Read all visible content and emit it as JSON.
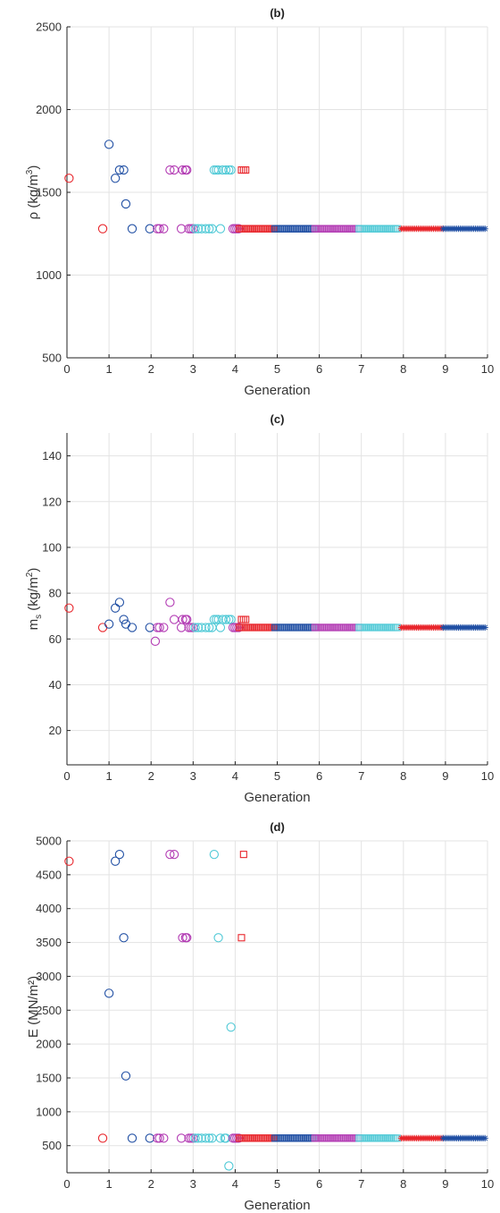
{
  "colors": {
    "red": "#e8252b",
    "blue": "#1f4ea3",
    "magenta": "#b23ab3",
    "cyan": "#4fc9d6",
    "grid": "#e3e3e3",
    "axis": "#222222"
  },
  "chart_data": [
    {
      "id": "b",
      "type": "scatter",
      "title": "(b)",
      "xlabel": "Generation",
      "ylabel_parts": [
        "ρ (kg/m",
        "3",
        ")"
      ],
      "xlim": [
        0,
        10
      ],
      "ylim": [
        500,
        2500
      ],
      "xticks": [
        0,
        1,
        2,
        3,
        4,
        5,
        6,
        7,
        8,
        9,
        10
      ],
      "yticks": [
        500,
        1000,
        1500,
        2000,
        2500
      ],
      "grid": true,
      "series": [
        {
          "color": "red",
          "marker": "circle",
          "x": [
            0.05,
            0.85
          ],
          "y": [
            1585,
            1280
          ]
        },
        {
          "color": "blue",
          "marker": "circle",
          "x": [
            1.0,
            1.15,
            1.25,
            1.35,
            1.4,
            1.55,
            1.97
          ],
          "y": [
            1790,
            1585,
            1635,
            1635,
            1430,
            1280,
            1280
          ]
        },
        {
          "color": "magenta",
          "marker": "circle",
          "x": [
            2.15,
            2.2,
            2.3,
            2.45,
            2.55,
            2.72,
            2.75,
            2.82,
            2.85,
            2.9,
            2.95,
            3.0
          ],
          "y": [
            1280,
            1280,
            1280,
            1635,
            1635,
            1280,
            1635,
            1635,
            1635,
            1280,
            1280,
            1280
          ]
        },
        {
          "color": "cyan",
          "marker": "circle",
          "x": [
            3.05,
            3.12,
            3.2,
            3.3,
            3.38,
            3.45,
            3.5,
            3.55,
            3.6,
            3.65,
            3.7,
            3.78,
            3.85,
            3.9
          ],
          "y": [
            1280,
            1280,
            1280,
            1280,
            1280,
            1280,
            1635,
            1635,
            1635,
            1280,
            1635,
            1635,
            1635,
            1635
          ]
        },
        {
          "color": "red",
          "marker": "square",
          "x": [
            4.15,
            4.2,
            4.25
          ],
          "y": [
            1635,
            1635,
            1635
          ]
        }
      ],
      "dense": [
        {
          "color": "magenta",
          "marker": "circle",
          "from": 3.95,
          "to": 4.1,
          "y": 1280
        },
        {
          "color": "red",
          "marker": "square",
          "from": 4.1,
          "to": 4.95,
          "y": 1280
        },
        {
          "color": "blue",
          "marker": "square",
          "from": 4.95,
          "to": 5.9,
          "y": 1280
        },
        {
          "color": "magenta",
          "marker": "square",
          "from": 5.9,
          "to": 6.95,
          "y": 1280
        },
        {
          "color": "cyan",
          "marker": "square",
          "from": 6.95,
          "to": 7.85,
          "y": 1280
        },
        {
          "color": "red",
          "marker": "star",
          "from": 7.95,
          "to": 8.95,
          "y": 1280
        },
        {
          "color": "blue",
          "marker": "star",
          "from": 8.95,
          "to": 9.98,
          "y": 1280
        }
      ]
    },
    {
      "id": "c",
      "type": "scatter",
      "title": "(c)",
      "xlabel": "Generation",
      "ylabel_parts": [
        "m",
        "s",
        " (kg/m",
        "2",
        ")"
      ],
      "xlim": [
        0,
        10
      ],
      "ylim": [
        5,
        150
      ],
      "xticks": [
        0,
        1,
        2,
        3,
        4,
        5,
        6,
        7,
        8,
        9,
        10
      ],
      "yticks": [
        20,
        40,
        60,
        80,
        100,
        120,
        140
      ],
      "grid": true,
      "series": [
        {
          "color": "red",
          "marker": "circle",
          "x": [
            0.05,
            0.85
          ],
          "y": [
            73.5,
            65
          ]
        },
        {
          "color": "blue",
          "marker": "circle",
          "x": [
            1.0,
            1.15,
            1.25,
            1.35,
            1.4,
            1.55,
            1.97
          ],
          "y": [
            66.5,
            73.5,
            76,
            68.5,
            66.5,
            65,
            65
          ]
        },
        {
          "color": "magenta",
          "marker": "circle",
          "x": [
            2.1,
            2.15,
            2.2,
            2.3,
            2.45,
            2.55,
            2.72,
            2.75,
            2.82,
            2.85,
            2.9,
            2.95,
            3.0
          ],
          "y": [
            59,
            65,
            65,
            65,
            76,
            68.5,
            65,
            68.5,
            68.5,
            68.5,
            65,
            65,
            65
          ]
        },
        {
          "color": "cyan",
          "marker": "circle",
          "x": [
            3.05,
            3.12,
            3.2,
            3.3,
            3.38,
            3.45,
            3.5,
            3.55,
            3.6,
            3.65,
            3.7,
            3.78,
            3.85,
            3.9
          ],
          "y": [
            65,
            65,
            65,
            65,
            65,
            65,
            68.5,
            68.5,
            68.5,
            65,
            68.5,
            68.5,
            68.5,
            68.5
          ]
        },
        {
          "color": "red",
          "marker": "square",
          "x": [
            4.15,
            4.2,
            4.25
          ],
          "y": [
            68.5,
            68.5,
            68.5
          ]
        }
      ],
      "dense": [
        {
          "color": "magenta",
          "marker": "circle",
          "from": 3.95,
          "to": 4.1,
          "y": 65
        },
        {
          "color": "red",
          "marker": "square",
          "from": 4.1,
          "to": 4.95,
          "y": 65
        },
        {
          "color": "blue",
          "marker": "square",
          "from": 4.95,
          "to": 5.9,
          "y": 65
        },
        {
          "color": "magenta",
          "marker": "square",
          "from": 5.9,
          "to": 6.95,
          "y": 65
        },
        {
          "color": "cyan",
          "marker": "square",
          "from": 6.95,
          "to": 7.85,
          "y": 65
        },
        {
          "color": "red",
          "marker": "star",
          "from": 7.95,
          "to": 8.95,
          "y": 65
        },
        {
          "color": "blue",
          "marker": "star",
          "from": 8.95,
          "to": 9.98,
          "y": 65
        }
      ]
    },
    {
      "id": "d",
      "type": "scatter",
      "title": "(d)",
      "xlabel": "Generation",
      "ylabel_parts": [
        "E (MN/m²)"
      ],
      "xlim": [
        0,
        10
      ],
      "ylim": [
        100,
        5000
      ],
      "xticks": [
        0,
        1,
        2,
        3,
        4,
        5,
        6,
        7,
        8,
        9,
        10
      ],
      "yticks": [
        500,
        1000,
        1500,
        2000,
        2500,
        3000,
        3500,
        4000,
        4500,
        5000
      ],
      "grid": true,
      "series": [
        {
          "color": "red",
          "marker": "circle",
          "x": [
            0.05,
            0.85
          ],
          "y": [
            4700,
            610
          ]
        },
        {
          "color": "blue",
          "marker": "circle",
          "x": [
            1.0,
            1.15,
            1.25,
            1.35,
            1.4,
            1.55,
            1.97
          ],
          "y": [
            2750,
            4700,
            4800,
            3570,
            1530,
            610,
            610
          ]
        },
        {
          "color": "magenta",
          "marker": "circle",
          "x": [
            2.15,
            2.2,
            2.3,
            2.45,
            2.55,
            2.72,
            2.75,
            2.82,
            2.85,
            2.9,
            2.95,
            3.0
          ],
          "y": [
            610,
            610,
            610,
            4800,
            4800,
            610,
            3570,
            3570,
            3570,
            610,
            610,
            610
          ]
        },
        {
          "color": "cyan",
          "marker": "circle",
          "x": [
            3.05,
            3.12,
            3.2,
            3.3,
            3.38,
            3.45,
            3.5,
            3.6,
            3.65,
            3.75,
            3.78,
            3.85,
            3.9
          ],
          "y": [
            610,
            610,
            610,
            610,
            610,
            610,
            4800,
            3570,
            610,
            610,
            610,
            200,
            2250
          ]
        },
        {
          "color": "red",
          "marker": "square",
          "x": [
            4.15,
            4.2
          ],
          "y": [
            3570,
            4800
          ]
        }
      ],
      "dense": [
        {
          "color": "magenta",
          "marker": "circle",
          "from": 3.95,
          "to": 4.1,
          "y": 610
        },
        {
          "color": "red",
          "marker": "square",
          "from": 4.1,
          "to": 4.95,
          "y": 610
        },
        {
          "color": "blue",
          "marker": "square",
          "from": 4.95,
          "to": 5.9,
          "y": 610
        },
        {
          "color": "magenta",
          "marker": "square",
          "from": 5.9,
          "to": 6.95,
          "y": 610
        },
        {
          "color": "cyan",
          "marker": "square",
          "from": 6.95,
          "to": 7.85,
          "y": 610
        },
        {
          "color": "red",
          "marker": "star",
          "from": 7.95,
          "to": 8.95,
          "y": 610
        },
        {
          "color": "blue",
          "marker": "star",
          "from": 8.95,
          "to": 9.98,
          "y": 610
        }
      ]
    }
  ]
}
